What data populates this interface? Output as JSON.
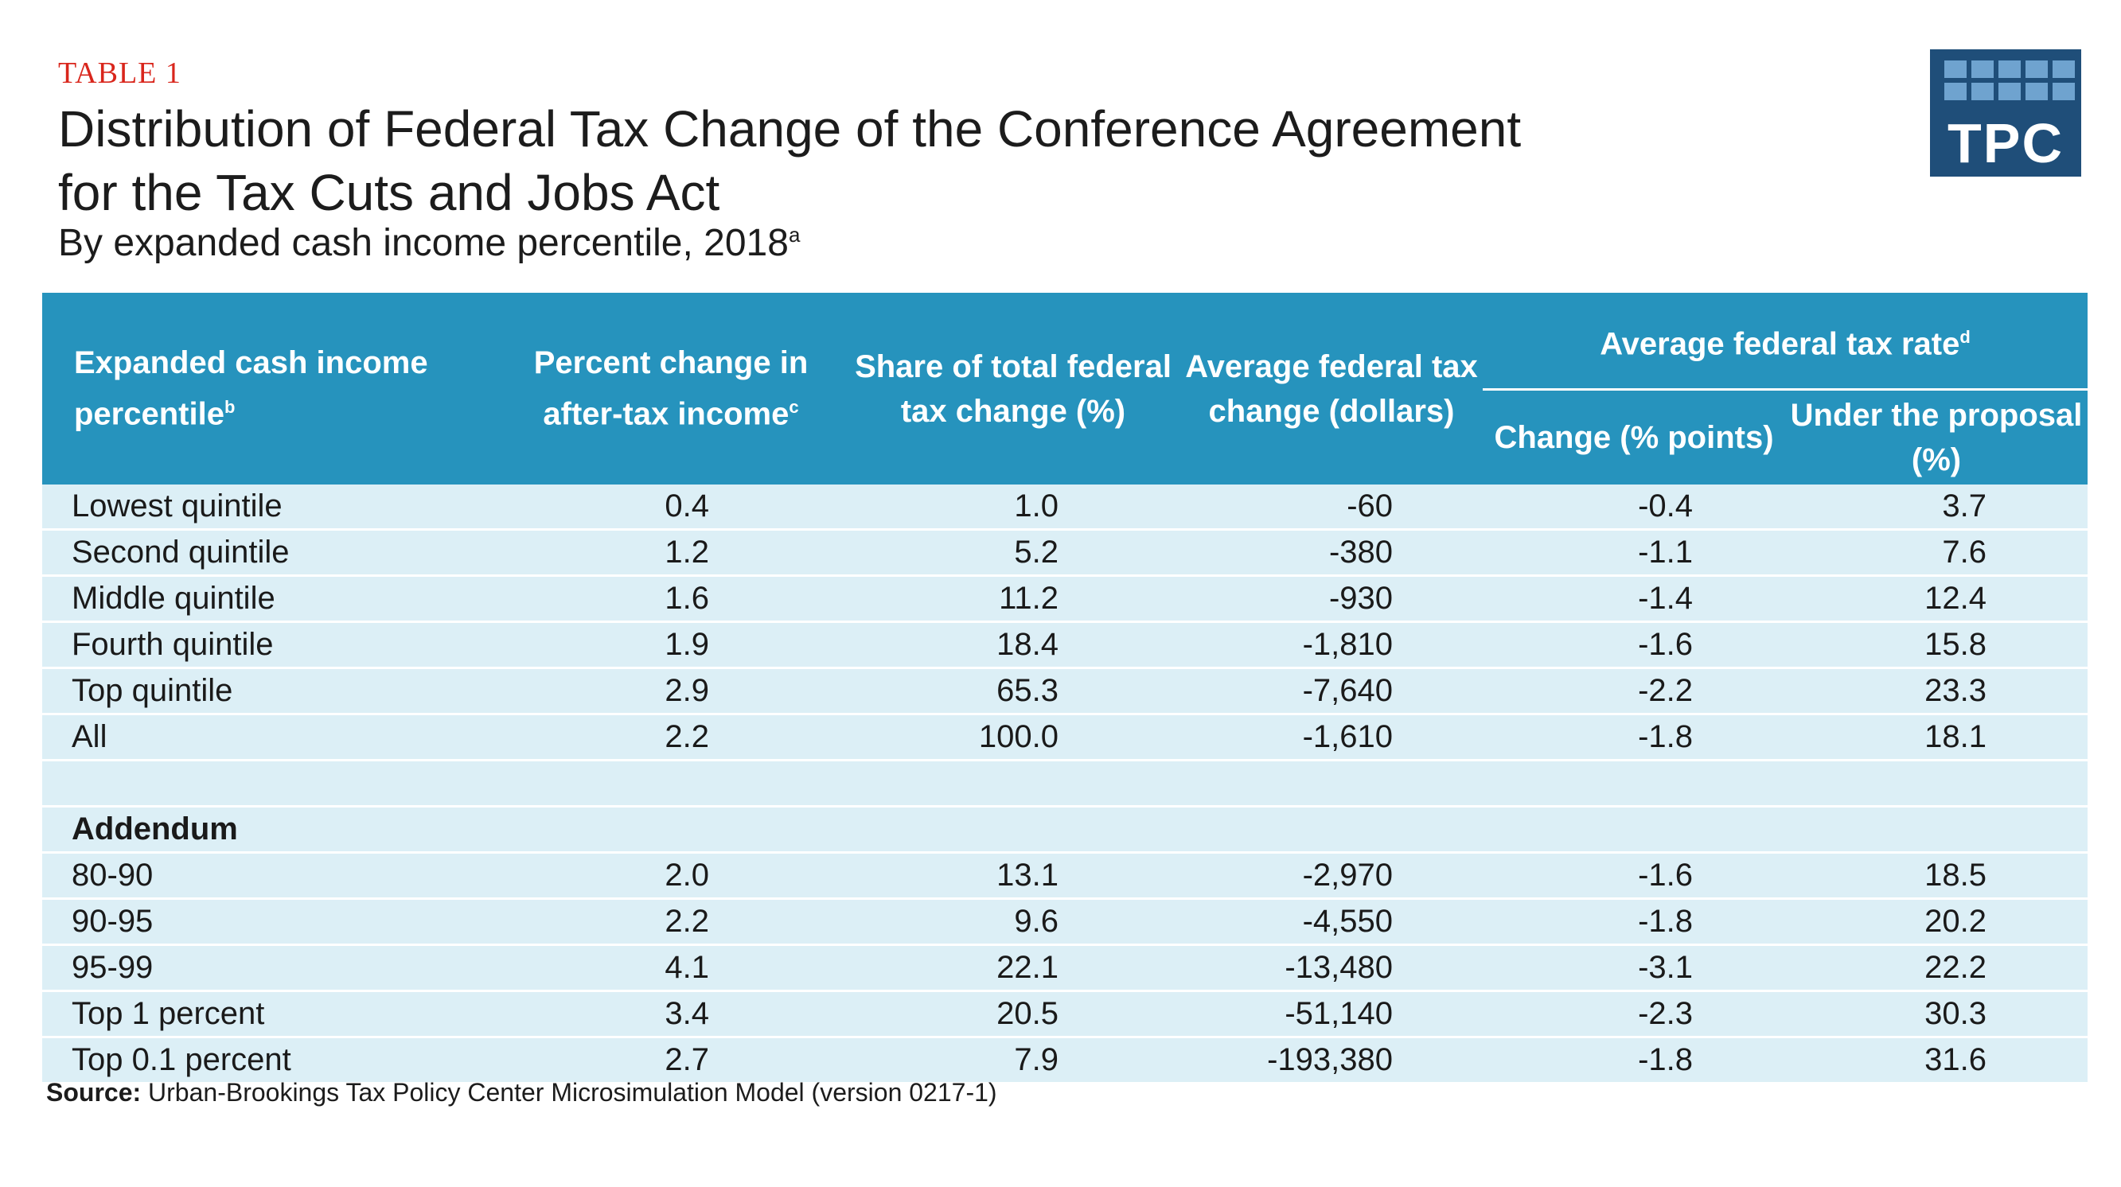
{
  "header": {
    "table_label": "TABLE 1",
    "title_line1": "Distribution of Federal Tax Change of the Conference Agreement",
    "title_line2": "for the Tax Cuts and Jobs Act",
    "subtitle": "By expanded cash income percentile, 2018",
    "subtitle_note": "a"
  },
  "logo": {
    "text": "TPC",
    "bg_color": "#1f4e79",
    "tile_color": "#6fa3cf"
  },
  "colors": {
    "header_bg": "#2693bd",
    "row_bg": "#dceff6",
    "label_red": "#d9261c"
  },
  "table": {
    "columns": {
      "col1": {
        "text": "Expanded cash income percentile",
        "note": "b"
      },
      "col2": {
        "text": "Percent change in after-tax income",
        "note": "c"
      },
      "col3": {
        "text": "Share of total federal tax change (%)"
      },
      "col4": {
        "text": "Average federal tax change (dollars)"
      },
      "group": {
        "text": "Average federal tax rate",
        "note": "d"
      },
      "col5": {
        "text": "Change (% points)"
      },
      "col6": {
        "text": "Under the proposal (%)"
      }
    },
    "rows": [
      {
        "label": "Lowest quintile",
        "pct_change": "0.4",
        "share": "1.0",
        "avg_change": "-60",
        "rate_change": "-0.4",
        "rate_under": "3.7"
      },
      {
        "label": "Second quintile",
        "pct_change": "1.2",
        "share": "5.2",
        "avg_change": "-380",
        "rate_change": "-1.1",
        "rate_under": "7.6"
      },
      {
        "label": "Middle quintile",
        "pct_change": "1.6",
        "share": "11.2",
        "avg_change": "-930",
        "rate_change": "-1.4",
        "rate_under": "12.4"
      },
      {
        "label": "Fourth quintile",
        "pct_change": "1.9",
        "share": "18.4",
        "avg_change": "-1,810",
        "rate_change": "-1.6",
        "rate_under": "15.8"
      },
      {
        "label": "Top quintile",
        "pct_change": "2.9",
        "share": "65.3",
        "avg_change": "-7,640",
        "rate_change": "-2.2",
        "rate_under": "23.3"
      },
      {
        "label": "All",
        "pct_change": "2.2",
        "share": "100.0",
        "avg_change": "-1,610",
        "rate_change": "-1.8",
        "rate_under": "18.1"
      }
    ],
    "addendum_label": "Addendum",
    "addendum_rows": [
      {
        "label": "80-90",
        "pct_change": "2.0",
        "share": "13.1",
        "avg_change": "-2,970",
        "rate_change": "-1.6",
        "rate_under": "18.5"
      },
      {
        "label": "90-95",
        "pct_change": "2.2",
        "share": "9.6",
        "avg_change": "-4,550",
        "rate_change": "-1.8",
        "rate_under": "20.2"
      },
      {
        "label": "95-99",
        "pct_change": "4.1",
        "share": "22.1",
        "avg_change": "-13,480",
        "rate_change": "-3.1",
        "rate_under": "22.2"
      },
      {
        "label": "Top 1 percent",
        "pct_change": "3.4",
        "share": "20.5",
        "avg_change": "-51,140",
        "rate_change": "-2.3",
        "rate_under": "30.3"
      },
      {
        "label": "Top 0.1 percent",
        "pct_change": "2.7",
        "share": "7.9",
        "avg_change": "-193,380",
        "rate_change": "-1.8",
        "rate_under": "31.6"
      }
    ]
  },
  "source": {
    "label": "Source:",
    "text": "Urban-Brookings Tax Policy Center Microsimulation Model (version 0217-1)"
  }
}
